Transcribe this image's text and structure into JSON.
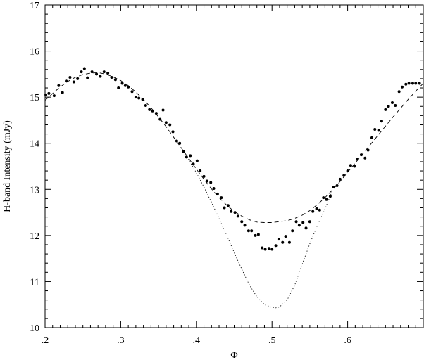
{
  "chart_data": {
    "type": "scatter",
    "xlabel": "Φ",
    "ylabel": "H-band Intensity (mJy)",
    "xlim": [
      0.2,
      0.7
    ],
    "ylim": [
      10,
      17
    ],
    "x_ticks": [
      0.2,
      0.3,
      0.4,
      0.5,
      0.6
    ],
    "x_tick_labels": [
      ".2",
      ".3",
      ".4",
      ".5",
      ".6"
    ],
    "y_ticks": [
      10,
      11,
      12,
      13,
      14,
      15,
      16,
      17
    ],
    "y_tick_labels": [
      "10",
      "11",
      "12",
      "13",
      "14",
      "15",
      "16",
      "17"
    ],
    "grid": false,
    "series": [
      {
        "style": "points",
        "x": [
          0.201,
          0.205,
          0.212,
          0.218,
          0.223,
          0.228,
          0.233,
          0.238,
          0.243,
          0.248,
          0.252,
          0.256,
          0.262,
          0.268,
          0.273,
          0.278,
          0.283,
          0.288,
          0.293,
          0.297,
          0.302,
          0.306,
          0.31,
          0.315,
          0.32,
          0.324,
          0.329,
          0.333,
          0.338,
          0.342,
          0.347,
          0.352,
          0.356,
          0.36,
          0.365,
          0.369,
          0.374,
          0.378,
          0.383,
          0.387,
          0.392,
          0.396,
          0.401,
          0.405,
          0.41,
          0.414,
          0.419,
          0.423,
          0.428,
          0.433,
          0.437,
          0.442,
          0.446,
          0.451,
          0.455,
          0.46,
          0.464,
          0.469,
          0.473,
          0.478,
          0.482,
          0.487,
          0.491,
          0.496,
          0.5,
          0.505,
          0.509,
          0.514,
          0.518,
          0.523,
          0.527,
          0.532,
          0.536,
          0.541,
          0.545,
          0.55,
          0.554,
          0.559,
          0.563,
          0.568,
          0.572,
          0.577,
          0.581,
          0.586,
          0.59,
          0.595,
          0.6,
          0.604,
          0.609,
          0.613,
          0.618,
          0.623,
          0.627,
          0.632,
          0.636,
          0.641,
          0.645,
          0.65,
          0.654,
          0.659,
          0.663,
          0.668,
          0.672,
          0.677,
          0.681,
          0.686,
          0.69,
          0.695
        ],
        "y": [
          15.05,
          15.08,
          15.03,
          15.25,
          15.1,
          15.35,
          15.43,
          15.33,
          15.4,
          15.55,
          15.62,
          15.42,
          15.55,
          15.5,
          15.45,
          15.55,
          15.52,
          15.43,
          15.38,
          15.2,
          15.3,
          15.25,
          15.22,
          15.12,
          15.0,
          14.98,
          14.95,
          14.82,
          14.73,
          14.7,
          14.65,
          14.52,
          14.72,
          14.45,
          14.4,
          14.25,
          14.05,
          14.0,
          13.82,
          13.7,
          13.73,
          13.55,
          13.62,
          13.4,
          13.28,
          13.18,
          13.15,
          13.02,
          12.9,
          12.82,
          12.6,
          12.65,
          12.52,
          12.5,
          12.42,
          12.3,
          12.22,
          12.1,
          12.1,
          12.0,
          12.02,
          11.73,
          11.7,
          11.72,
          11.7,
          11.78,
          11.92,
          11.85,
          11.98,
          11.85,
          12.1,
          12.3,
          12.22,
          12.28,
          12.16,
          12.3,
          12.52,
          12.58,
          12.55,
          12.82,
          12.78,
          12.85,
          13.05,
          13.08,
          13.22,
          13.3,
          13.4,
          13.52,
          13.5,
          13.65,
          13.75,
          13.68,
          13.85,
          14.12,
          14.3,
          14.28,
          14.48,
          14.73,
          14.8,
          14.88,
          14.82,
          15.12,
          15.22,
          15.28,
          15.3,
          15.3,
          15.3,
          15.3
        ]
      },
      {
        "style": "dashed",
        "x": [
          0.2,
          0.21,
          0.22,
          0.23,
          0.24,
          0.25,
          0.26,
          0.27,
          0.28,
          0.29,
          0.3,
          0.31,
          0.32,
          0.33,
          0.34,
          0.35,
          0.36,
          0.37,
          0.38,
          0.39,
          0.4,
          0.41,
          0.42,
          0.43,
          0.44,
          0.45,
          0.46,
          0.47,
          0.48,
          0.49,
          0.5,
          0.51,
          0.52,
          0.53,
          0.54,
          0.55,
          0.56,
          0.57,
          0.58,
          0.59,
          0.6,
          0.61,
          0.62,
          0.63,
          0.64,
          0.65,
          0.66,
          0.67,
          0.68,
          0.69,
          0.7
        ],
        "y": [
          14.93,
          15.08,
          15.22,
          15.34,
          15.43,
          15.49,
          15.52,
          15.53,
          15.5,
          15.44,
          15.36,
          15.25,
          15.11,
          14.95,
          14.77,
          14.57,
          14.36,
          14.13,
          13.9,
          13.67,
          13.44,
          13.22,
          13.01,
          12.82,
          12.66,
          12.52,
          12.42,
          12.34,
          12.29,
          12.28,
          12.28,
          12.3,
          12.32,
          12.37,
          12.44,
          12.54,
          12.67,
          12.82,
          12.99,
          13.17,
          13.37,
          13.57,
          13.77,
          13.97,
          14.17,
          14.37,
          14.57,
          14.76,
          14.95,
          15.13,
          15.3
        ]
      },
      {
        "style": "dotted",
        "x": [
          0.38,
          0.39,
          0.4,
          0.41,
          0.42,
          0.43,
          0.44,
          0.45,
          0.46,
          0.47,
          0.48,
          0.49,
          0.5,
          0.505,
          0.51,
          0.52,
          0.53,
          0.54,
          0.55,
          0.56,
          0.57,
          0.58
        ],
        "y": [
          13.9,
          13.64,
          13.36,
          13.05,
          12.72,
          12.37,
          12.01,
          11.63,
          11.27,
          10.93,
          10.67,
          10.5,
          10.44,
          10.43,
          10.45,
          10.6,
          10.92,
          11.38,
          11.82,
          12.22,
          12.57,
          12.98
        ]
      }
    ]
  }
}
